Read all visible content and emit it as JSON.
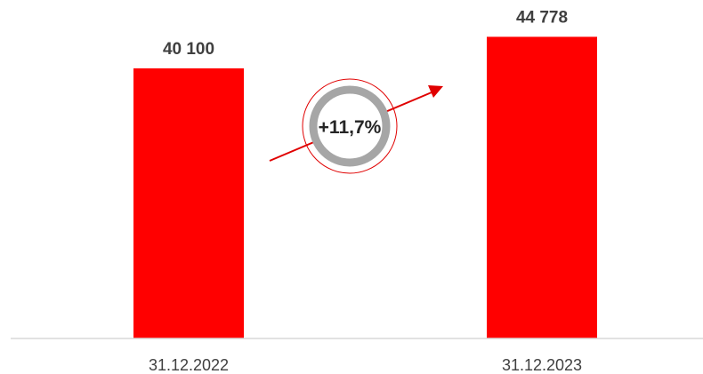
{
  "chart_data": {
    "type": "bar",
    "categories": [
      "31.12.2022",
      "31.12.2023"
    ],
    "values": [
      40100,
      44778
    ],
    "value_labels": [
      "40 100",
      "44 778"
    ],
    "ylim": [
      0,
      48000
    ],
    "grid": false,
    "annotation": {
      "text": "+11,7%",
      "kind": "growth-arrow"
    },
    "colors": {
      "bar": "#ff0000",
      "axis": "#d9d9d9",
      "ring": "#a6a6a6",
      "arrow": "#e00000",
      "text": "#404040"
    }
  }
}
